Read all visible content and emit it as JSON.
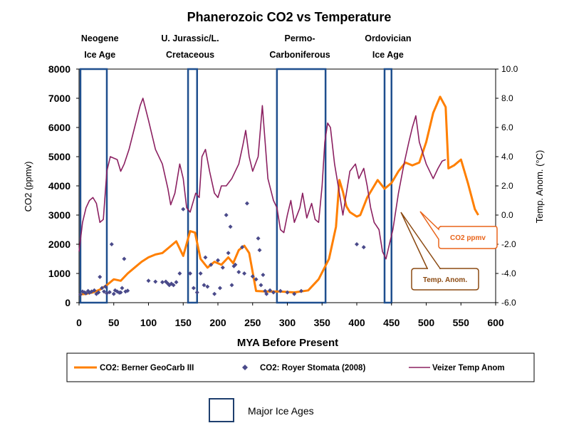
{
  "chart_data": {
    "type": "line",
    "title": "Phanerozoic CO2 vs Temperature",
    "xlabel": "MYA Before Present",
    "ylabel": "CO2 (ppmv)",
    "y2label": "Temp. Anom. (°C)",
    "xlim": [
      0,
      600
    ],
    "ylim": [
      0,
      8000
    ],
    "y2lim": [
      -6,
      10
    ],
    "x_ticks": [
      "0",
      "50",
      "100",
      "150",
      "200",
      "250",
      "300",
      "350",
      "400",
      "450",
      "500",
      "550",
      "600"
    ],
    "y_ticks": [
      "0",
      "1000",
      "2000",
      "3000",
      "4000",
      "5000",
      "6000",
      "7000",
      "8000"
    ],
    "y2_ticks": [
      "-6.0",
      "-4.0",
      "-2.0",
      "0.0",
      "2.0",
      "4.0",
      "6.0",
      "8.0",
      "10.0"
    ],
    "ice_ages": [
      {
        "label_1": "Neogene",
        "label_2": "Ice Age",
        "label_x": 30,
        "start": 2,
        "end": 40
      },
      {
        "label_1": "U. Jurassic/L.",
        "label_2": "Cretaceous",
        "label_x": 160,
        "start": 157,
        "end": 170
      },
      {
        "label_1": "Permo-",
        "label_2": "Carboniferous",
        "label_x": 318,
        "start": 285,
        "end": 355
      },
      {
        "label_1": "Ordovician",
        "label_2": "Ice Age",
        "label_x": 445,
        "start": 440,
        "end": 450
      }
    ],
    "series": [
      {
        "name": "CO2: Berner GeoCarb III",
        "axis": "left",
        "color": "#ff7f00",
        "points": [
          [
            0,
            280
          ],
          [
            10,
            300
          ],
          [
            20,
            350
          ],
          [
            30,
            450
          ],
          [
            40,
            600
          ],
          [
            50,
            800
          ],
          [
            60,
            750
          ],
          [
            70,
            1000
          ],
          [
            80,
            1200
          ],
          [
            90,
            1400
          ],
          [
            100,
            1550
          ],
          [
            110,
            1650
          ],
          [
            120,
            1700
          ],
          [
            130,
            1900
          ],
          [
            140,
            2100
          ],
          [
            150,
            1600
          ],
          [
            160,
            2450
          ],
          [
            167,
            2400
          ],
          [
            175,
            1500
          ],
          [
            185,
            1200
          ],
          [
            195,
            1400
          ],
          [
            205,
            1300
          ],
          [
            215,
            1550
          ],
          [
            222,
            1350
          ],
          [
            230,
            1800
          ],
          [
            238,
            1950
          ],
          [
            245,
            1700
          ],
          [
            255,
            400
          ],
          [
            270,
            380
          ],
          [
            290,
            380
          ],
          [
            310,
            350
          ],
          [
            330,
            420
          ],
          [
            345,
            800
          ],
          [
            360,
            1500
          ],
          [
            370,
            2600
          ],
          [
            375,
            4200
          ],
          [
            380,
            3800
          ],
          [
            385,
            3300
          ],
          [
            390,
            3100
          ],
          [
            400,
            2950
          ],
          [
            405,
            3000
          ],
          [
            415,
            3600
          ],
          [
            425,
            4000
          ],
          [
            430,
            4200
          ],
          [
            440,
            3900
          ],
          [
            450,
            4100
          ],
          [
            460,
            4500
          ],
          [
            470,
            4800
          ],
          [
            480,
            4700
          ],
          [
            490,
            4800
          ],
          [
            500,
            5500
          ],
          [
            510,
            6500
          ],
          [
            520,
            7050
          ],
          [
            528,
            6700
          ],
          [
            532,
            4600
          ],
          [
            540,
            4700
          ],
          [
            550,
            4900
          ],
          [
            560,
            4100
          ],
          [
            570,
            3200
          ],
          [
            575,
            3000
          ]
        ]
      },
      {
        "name": "CO2: Royer Stomata (2008)",
        "axis": "left",
        "color": "#4a4a8a",
        "points": [
          [
            2,
            280
          ],
          [
            5,
            380
          ],
          [
            8,
            350
          ],
          [
            10,
            320
          ],
          [
            13,
            400
          ],
          [
            15,
            340
          ],
          [
            18,
            380
          ],
          [
            22,
            420
          ],
          [
            25,
            300
          ],
          [
            28,
            350
          ],
          [
            30,
            880
          ],
          [
            33,
            500
          ],
          [
            36,
            380
          ],
          [
            38,
            550
          ],
          [
            40,
            320
          ],
          [
            44,
            360
          ],
          [
            47,
            2000
          ],
          [
            50,
            300
          ],
          [
            52,
            420
          ],
          [
            55,
            380
          ],
          [
            58,
            340
          ],
          [
            60,
            350
          ],
          [
            62,
            500
          ],
          [
            65,
            1500
          ],
          [
            67,
            380
          ],
          [
            70,
            410
          ],
          [
            100,
            750
          ],
          [
            110,
            720
          ],
          [
            120,
            700
          ],
          [
            125,
            720
          ],
          [
            128,
            650
          ],
          [
            130,
            600
          ],
          [
            133,
            650
          ],
          [
            136,
            600
          ],
          [
            140,
            700
          ],
          [
            145,
            1000
          ],
          [
            150,
            3200
          ],
          [
            160,
            1000
          ],
          [
            165,
            500
          ],
          [
            170,
            350
          ],
          [
            175,
            1000
          ],
          [
            180,
            600
          ],
          [
            182,
            1550
          ],
          [
            185,
            550
          ],
          [
            190,
            1300
          ],
          [
            195,
            300
          ],
          [
            200,
            1450
          ],
          [
            203,
            500
          ],
          [
            207,
            1200
          ],
          [
            212,
            3000
          ],
          [
            215,
            1700
          ],
          [
            218,
            2600
          ],
          [
            220,
            600
          ],
          [
            223,
            1250
          ],
          [
            225,
            1300
          ],
          [
            230,
            1050
          ],
          [
            235,
            1900
          ],
          [
            238,
            1000
          ],
          [
            242,
            3400
          ],
          [
            250,
            900
          ],
          [
            255,
            800
          ],
          [
            258,
            2200
          ],
          [
            260,
            1800
          ],
          [
            262,
            600
          ],
          [
            265,
            950
          ],
          [
            268,
            400
          ],
          [
            270,
            300
          ],
          [
            275,
            420
          ],
          [
            280,
            350
          ],
          [
            290,
            400
          ],
          [
            300,
            350
          ],
          [
            310,
            300
          ],
          [
            320,
            400
          ],
          [
            400,
            2000
          ],
          [
            410,
            1900
          ]
        ]
      },
      {
        "name": "Veizer Temp Anom",
        "axis": "right",
        "color": "#8b2061",
        "points": [
          [
            0,
            -2.5
          ],
          [
            5,
            -0.5
          ],
          [
            10,
            0.5
          ],
          [
            15,
            1.0
          ],
          [
            20,
            1.2
          ],
          [
            25,
            0.8
          ],
          [
            30,
            -0.5
          ],
          [
            35,
            -0.3
          ],
          [
            40,
            3.0
          ],
          [
            45,
            4.0
          ],
          [
            55,
            3.8
          ],
          [
            60,
            3.0
          ],
          [
            65,
            3.5
          ],
          [
            72,
            4.5
          ],
          [
            80,
            6.0
          ],
          [
            88,
            7.5
          ],
          [
            92,
            8.0
          ],
          [
            100,
            6.5
          ],
          [
            110,
            4.5
          ],
          [
            120,
            3.5
          ],
          [
            128,
            1.8
          ],
          [
            132,
            0.7
          ],
          [
            138,
            1.5
          ],
          [
            145,
            3.5
          ],
          [
            150,
            2.5
          ],
          [
            155,
            0.5
          ],
          [
            160,
            0.2
          ],
          [
            168,
            1.5
          ],
          [
            173,
            1.2
          ],
          [
            177,
            4.0
          ],
          [
            182,
            4.5
          ],
          [
            188,
            3.0
          ],
          [
            195,
            1.5
          ],
          [
            200,
            1.2
          ],
          [
            205,
            2.0
          ],
          [
            212,
            2.0
          ],
          [
            220,
            2.5
          ],
          [
            230,
            3.5
          ],
          [
            236,
            4.8
          ],
          [
            240,
            5.8
          ],
          [
            245,
            4.0
          ],
          [
            250,
            3.0
          ],
          [
            258,
            4.0
          ],
          [
            264,
            7.5
          ],
          [
            268,
            5.0
          ],
          [
            272,
            2.5
          ],
          [
            280,
            1.0
          ],
          [
            285,
            0.5
          ],
          [
            290,
            -1.0
          ],
          [
            295,
            -1.2
          ],
          [
            300,
            0.0
          ],
          [
            305,
            1.0
          ],
          [
            310,
            -0.5
          ],
          [
            318,
            0.5
          ],
          [
            322,
            1.5
          ],
          [
            328,
            -0.2
          ],
          [
            335,
            0.8
          ],
          [
            340,
            -0.3
          ],
          [
            345,
            -0.5
          ],
          [
            350,
            2.0
          ],
          [
            354,
            5.0
          ],
          [
            358,
            6.3
          ],
          [
            362,
            6.0
          ],
          [
            368,
            3.5
          ],
          [
            375,
            1.5
          ],
          [
            380,
            0.0
          ],
          [
            385,
            1.5
          ],
          [
            390,
            3.0
          ],
          [
            398,
            3.5
          ],
          [
            403,
            2.5
          ],
          [
            410,
            3.2
          ],
          [
            415,
            2.0
          ],
          [
            420,
            0.5
          ],
          [
            425,
            -0.5
          ],
          [
            432,
            -1.0
          ],
          [
            437,
            -2.5
          ],
          [
            442,
            -3.0
          ],
          [
            447,
            -2.0
          ],
          [
            452,
            -1.0
          ],
          [
            460,
            1.5
          ],
          [
            468,
            3.5
          ],
          [
            475,
            5.0
          ],
          [
            480,
            6.0
          ],
          [
            485,
            6.8
          ],
          [
            490,
            5.0
          ],
          [
            500,
            3.5
          ],
          [
            510,
            2.5
          ],
          [
            517,
            3.2
          ],
          [
            523,
            3.7
          ],
          [
            528,
            3.8
          ]
        ]
      }
    ],
    "callouts": [
      {
        "text": "CO2 ppmv",
        "color": "#e8641a"
      },
      {
        "text": "Temp. Anom.",
        "color": "#8b4a12"
      }
    ],
    "legend_key": "Major Ice Ages"
  }
}
